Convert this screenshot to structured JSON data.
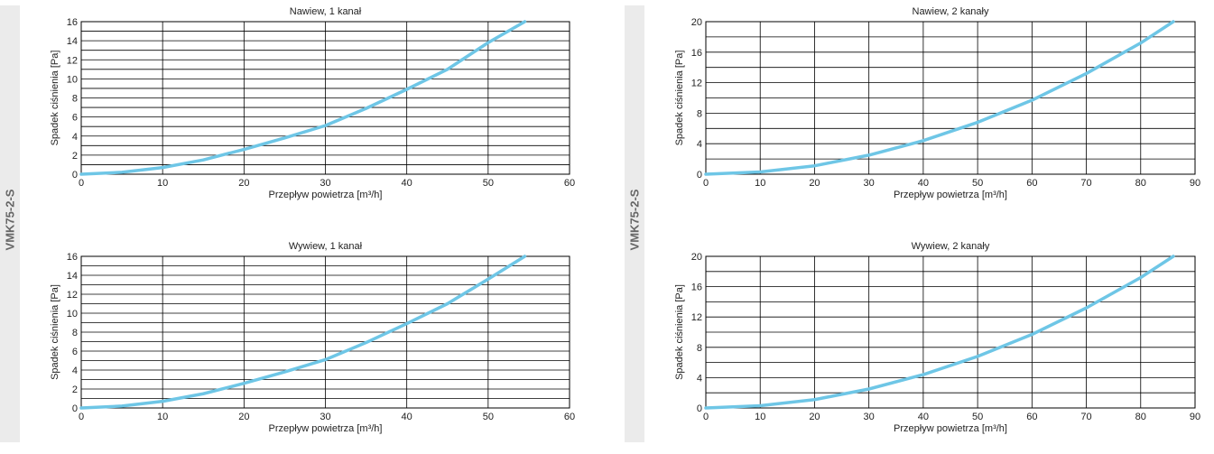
{
  "side_labels": [
    "VMK75-2-S",
    "VMK75-2-S"
  ],
  "colors": {
    "curve": "#6ec6e6",
    "grid": "#000000",
    "band": "#ebebeb"
  },
  "chart_data": [
    {
      "type": "line",
      "title": "Nawiew, 1 kanał",
      "xlabel": "Przepływ powietrza [m³/h]",
      "ylabel": "Spadek ciśnienia [Pa]",
      "xlim": [
        0,
        60
      ],
      "ylim": [
        0,
        16
      ],
      "xticks": [
        0,
        10,
        20,
        30,
        40,
        50,
        60
      ],
      "yticks": [
        0,
        2,
        4,
        6,
        8,
        10,
        12,
        14,
        16
      ],
      "grid": true,
      "series": [
        {
          "x": [
            0,
            5,
            10,
            15,
            20,
            25,
            30,
            35,
            40,
            45,
            50,
            54.5
          ],
          "y": [
            0,
            0.2,
            0.7,
            1.5,
            2.6,
            3.8,
            5.1,
            6.9,
            8.9,
            11.0,
            13.8,
            16.0
          ]
        }
      ]
    },
    {
      "type": "line",
      "title": "Nawiew, 2 kanały",
      "xlabel": "Przepływ powietrza [m³/h]",
      "ylabel": "Spadek ciśnienia [Pa]",
      "xlim": [
        0,
        90
      ],
      "ylim": [
        0,
        20
      ],
      "xticks": [
        0,
        10,
        20,
        30,
        40,
        50,
        60,
        70,
        80,
        90
      ],
      "yticks": [
        0,
        4,
        8,
        12,
        16,
        20
      ],
      "grid": true,
      "series": [
        {
          "x": [
            0,
            10,
            20,
            30,
            40,
            50,
            60,
            70,
            80,
            86
          ],
          "y": [
            0,
            0.3,
            1.1,
            2.5,
            4.4,
            6.8,
            9.7,
            13.2,
            17.2,
            20.0
          ]
        }
      ]
    },
    {
      "type": "line",
      "title": "Wywiew, 1 kanał",
      "xlabel": "Przepływ powietrza [m³/h]",
      "ylabel": "Spadek ciśnienia [Pa]",
      "xlim": [
        0,
        60
      ],
      "ylim": [
        0,
        16
      ],
      "xticks": [
        0,
        10,
        20,
        30,
        40,
        50,
        60
      ],
      "yticks": [
        0,
        2,
        4,
        6,
        8,
        10,
        12,
        14,
        16
      ],
      "grid": true,
      "series": [
        {
          "x": [
            0,
            5,
            10,
            15,
            20,
            25,
            30,
            35,
            40,
            45,
            50,
            54.5
          ],
          "y": [
            0,
            0.2,
            0.7,
            1.5,
            2.6,
            3.8,
            5.1,
            6.9,
            8.9,
            11.0,
            13.6,
            16.0
          ]
        }
      ]
    },
    {
      "type": "line",
      "title": "Wywiew, 2 kanały",
      "xlabel": "Przepływ powietrza [m³/h]",
      "ylabel": "Spadek ciśnienia [Pa]",
      "xlim": [
        0,
        90
      ],
      "ylim": [
        0,
        20
      ],
      "xticks": [
        0,
        10,
        20,
        30,
        40,
        50,
        60,
        70,
        80,
        90
      ],
      "yticks": [
        0,
        4,
        8,
        12,
        16,
        20
      ],
      "grid": true,
      "series": [
        {
          "x": [
            0,
            10,
            20,
            30,
            40,
            50,
            60,
            70,
            80,
            86
          ],
          "y": [
            0,
            0.3,
            1.1,
            2.5,
            4.4,
            6.8,
            9.7,
            13.2,
            17.2,
            20.0
          ]
        }
      ]
    }
  ]
}
